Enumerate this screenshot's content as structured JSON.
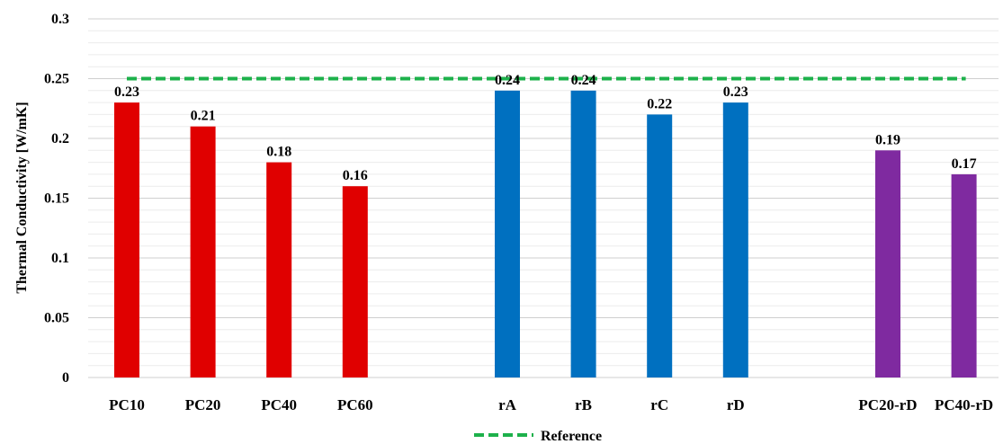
{
  "chart_data": {
    "type": "bar",
    "ylabel": "Thermal Conductivity [W/mK]",
    "ylim": [
      0,
      0.3
    ],
    "yticks": [
      "0",
      "0.05",
      "0.1",
      "0.15",
      "0.2",
      "0.25",
      "0.3"
    ],
    "ytick_values": [
      0,
      0.05,
      0.1,
      0.15,
      0.2,
      0.25,
      0.3
    ],
    "grid": true,
    "legend_position": "bottom",
    "groups": [
      {
        "color": "#e00000",
        "categories": [
          "PC10",
          "PC20",
          "PC40",
          "PC60"
        ],
        "values": [
          0.23,
          0.21,
          0.18,
          0.16
        ],
        "labels": [
          "0.23",
          "0.21",
          "0.18",
          "0.16"
        ]
      },
      {
        "color": "#0070c0",
        "categories": [
          "rA",
          "rB",
          "rC",
          "rD"
        ],
        "values": [
          0.24,
          0.24,
          0.22,
          0.23
        ],
        "labels": [
          "0.24",
          "0.24",
          "0.22",
          "0.23"
        ]
      },
      {
        "color": "#7f2aa0",
        "categories": [
          "PC20-rD",
          "PC40-rD"
        ],
        "values": [
          0.19,
          0.17
        ],
        "labels": [
          "0.19",
          "0.17"
        ]
      }
    ],
    "reference_line": {
      "name": "Reference",
      "value": 0.25,
      "color": "#1db14b",
      "style": "dashed"
    }
  }
}
